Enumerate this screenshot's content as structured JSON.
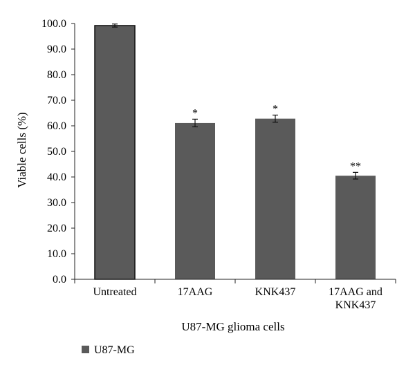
{
  "chart_data": {
    "type": "bar",
    "xlabel": "U87-MG glioma cells",
    "ylabel": "Viable cells (%)",
    "ylim": [
      0,
      100
    ],
    "yticks": [
      "0.0",
      "10.0",
      "20.0",
      "30.0",
      "40.0",
      "50.0",
      "60.0",
      "70.0",
      "80.0",
      "90.0",
      "100.0"
    ],
    "categories": [
      [
        "Untreated"
      ],
      [
        "17AAG"
      ],
      [
        "KNK437"
      ],
      [
        "17AAG and",
        "KNK437"
      ]
    ],
    "series": [
      {
        "name": "U87-MG",
        "values": [
          99.2,
          61.1,
          62.8,
          40.5
        ],
        "errors": [
          0.6,
          1.5,
          1.4,
          1.3
        ],
        "annotations": [
          "",
          "*",
          "*",
          "**"
        ]
      }
    ],
    "legend_position": "bottom-left",
    "colors": {
      "bar": "#5a5a5a",
      "bar_highlight_border": "#111111",
      "axis": "#222222"
    }
  }
}
